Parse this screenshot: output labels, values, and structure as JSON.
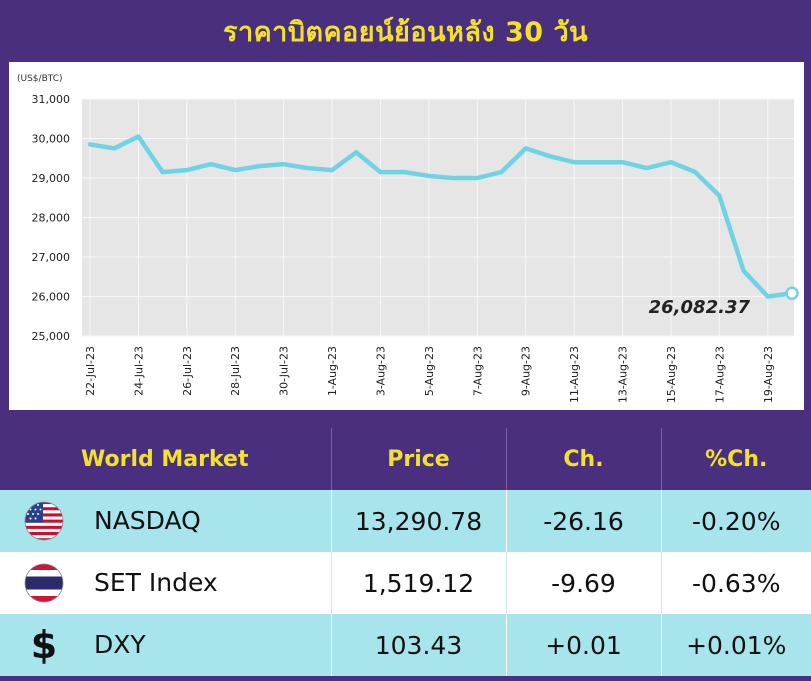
{
  "title": "ราคาบิตคอยน์ย้อนหลัง 30 วัน",
  "chart_data": {
    "type": "line",
    "unit_label": "(US$/BTC)",
    "ylim": [
      25000,
      31000
    ],
    "yticks": [
      "31,000",
      "30,000",
      "29,000",
      "28,000",
      "27,000",
      "26,000",
      "25,000"
    ],
    "xtick_labels": [
      "22-Jul-23",
      "24-Jul-23",
      "26-Jul-23",
      "28-Jul-23",
      "30-Jul-23",
      "1-Aug-23",
      "3-Aug-23",
      "5-Aug-23",
      "7-Aug-23",
      "9-Aug-23",
      "11-Aug-23",
      "13-Aug-23",
      "15-Aug-23",
      "17-Aug-23",
      "19-Aug-23"
    ],
    "grid": true,
    "x": [
      "22-Jul-23",
      "23-Jul-23",
      "24-Jul-23",
      "25-Jul-23",
      "26-Jul-23",
      "27-Jul-23",
      "28-Jul-23",
      "29-Jul-23",
      "30-Jul-23",
      "31-Jul-23",
      "1-Aug-23",
      "2-Aug-23",
      "3-Aug-23",
      "4-Aug-23",
      "5-Aug-23",
      "6-Aug-23",
      "7-Aug-23",
      "8-Aug-23",
      "9-Aug-23",
      "10-Aug-23",
      "11-Aug-23",
      "12-Aug-23",
      "13-Aug-23",
      "14-Aug-23",
      "15-Aug-23",
      "16-Aug-23",
      "17-Aug-23",
      "18-Aug-23",
      "19-Aug-23",
      "20-Aug-23"
    ],
    "values": [
      29850,
      29750,
      30050,
      29150,
      29200,
      29350,
      29200,
      29300,
      29350,
      29250,
      29200,
      29650,
      29150,
      29150,
      29050,
      29000,
      29000,
      29150,
      29750,
      29550,
      29400,
      29400,
      29400,
      29250,
      29400,
      29150,
      28550,
      26650,
      26000,
      26082.37
    ],
    "last_value_label": "26,082.37",
    "line_color": "#6fd3e4"
  },
  "table": {
    "headers": [
      "World Market",
      "Price",
      "Ch.",
      "%Ch."
    ],
    "rows": [
      {
        "name": "NASDAQ",
        "flag": "us-flag-icon",
        "price": "13,290.78",
        "ch": "-26.16",
        "pct": "-0.20%"
      },
      {
        "name": "SET Index",
        "flag": "thai-flag-icon",
        "price": "1,519.12",
        "ch": "-9.69",
        "pct": "-0.63%"
      },
      {
        "name": "DXY",
        "flag": "dollar-sign-icon",
        "price": "103.43",
        "ch": "+0.01",
        "pct": "+0.01%"
      }
    ]
  },
  "colors": {
    "background": "#4a2f7e",
    "title": "#f2e22c",
    "row_cyan": "#a8e4ec",
    "row_white": "#ffffff"
  }
}
